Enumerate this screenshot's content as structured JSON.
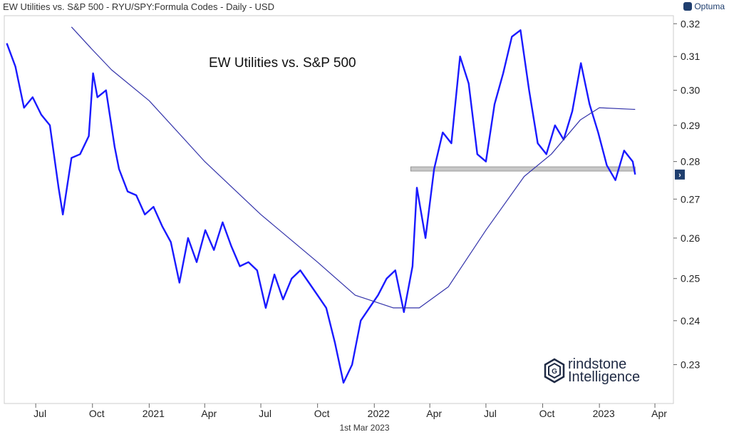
{
  "header": {
    "title": "EW Utilities vs. S&P 500 - RYU/SPY:Formula Codes - Daily - USD",
    "brand": "Optuma"
  },
  "footer": {
    "date": "1st Mar 2023"
  },
  "logo": {
    "line1": "rindstone",
    "line2": "Intelligence",
    "mark_letter": "G"
  },
  "colors": {
    "price_line": "#1a1aff",
    "moving_average": "#3333aa",
    "support_band": "#c8c8c8",
    "axis_marker": "#1f3e6e"
  },
  "chart_data": {
    "type": "line",
    "title": "EW Utilities vs. S&P 500",
    "xlabel": "",
    "ylabel": "",
    "ylim": [
      0.2215,
      0.3225
    ],
    "yscale": "log",
    "x_range": [
      "2020-05-11",
      "2023-05-01"
    ],
    "x_ticks": [
      {
        "label": "Jul",
        "date": "2020-07-01"
      },
      {
        "label": "Oct",
        "date": "2020-10-01"
      },
      {
        "label": "2021",
        "date": "2021-01-01"
      },
      {
        "label": "Apr",
        "date": "2021-04-01"
      },
      {
        "label": "Jul",
        "date": "2021-07-01"
      },
      {
        "label": "Oct",
        "date": "2021-10-01"
      },
      {
        "label": "2022",
        "date": "2022-01-01"
      },
      {
        "label": "Apr",
        "date": "2022-04-01"
      },
      {
        "label": "Jul",
        "date": "2022-07-01"
      },
      {
        "label": "Oct",
        "date": "2022-10-01"
      },
      {
        "label": "2023",
        "date": "2023-01-01"
      },
      {
        "label": "Apr",
        "date": "2023-04-01"
      }
    ],
    "y_ticks": [
      0.23,
      0.24,
      0.25,
      0.26,
      0.27,
      0.28,
      0.29,
      0.3,
      0.31,
      0.32
    ],
    "y_tick_labels": [
      "0.23",
      "0.24",
      "0.25",
      "0.26",
      "0.27",
      "0.28",
      "0.29",
      "0.30",
      "0.31",
      "0.32"
    ],
    "current_value_marker": 0.2765,
    "support_level": {
      "value": 0.278,
      "start": "2022-03-01",
      "end": "2023-02-28"
    },
    "series": [
      {
        "style": "price",
        "x": [
          "2020-05-15",
          "2020-05-29",
          "2020-06-12",
          "2020-06-26",
          "2020-07-10",
          "2020-07-24",
          "2020-08-07",
          "2020-08-14",
          "2020-08-28",
          "2020-09-11",
          "2020-09-25",
          "2020-10-02",
          "2020-10-09",
          "2020-10-23",
          "2020-11-06",
          "2020-11-13",
          "2020-11-27",
          "2020-12-11",
          "2020-12-25",
          "2021-01-08",
          "2021-01-22",
          "2021-02-05",
          "2021-02-19",
          "2021-03-05",
          "2021-03-19",
          "2021-04-02",
          "2021-04-16",
          "2021-04-30",
          "2021-05-14",
          "2021-05-28",
          "2021-06-11",
          "2021-06-25",
          "2021-07-09",
          "2021-07-23",
          "2021-08-06",
          "2021-08-20",
          "2021-09-03",
          "2021-09-17",
          "2021-10-01",
          "2021-10-15",
          "2021-10-29",
          "2021-11-12",
          "2021-11-26",
          "2021-12-10",
          "2021-12-24",
          "2022-01-07",
          "2022-01-21",
          "2022-02-04",
          "2022-02-18",
          "2022-03-04",
          "2022-03-11",
          "2022-03-25",
          "2022-04-08",
          "2022-04-22",
          "2022-05-06",
          "2022-05-20",
          "2022-06-03",
          "2022-06-17",
          "2022-07-01",
          "2022-07-15",
          "2022-07-29",
          "2022-08-12",
          "2022-08-26",
          "2022-09-09",
          "2022-09-23",
          "2022-10-07",
          "2022-10-21",
          "2022-11-04",
          "2022-11-18",
          "2022-12-02",
          "2022-12-16",
          "2022-12-30",
          "2023-01-13",
          "2023-01-27",
          "2023-02-10",
          "2023-02-24",
          "2023-02-28"
        ],
        "y": [
          0.314,
          0.307,
          0.295,
          0.298,
          0.293,
          0.29,
          0.273,
          0.266,
          0.281,
          0.282,
          0.287,
          0.305,
          0.298,
          0.3,
          0.284,
          0.278,
          0.272,
          0.271,
          0.266,
          0.268,
          0.263,
          0.259,
          0.249,
          0.26,
          0.254,
          0.262,
          0.257,
          0.264,
          0.258,
          0.253,
          0.254,
          0.252,
          0.243,
          0.251,
          0.245,
          0.25,
          0.252,
          0.249,
          0.246,
          0.243,
          0.235,
          0.226,
          0.23,
          0.24,
          0.243,
          0.246,
          0.25,
          0.252,
          0.242,
          0.253,
          0.273,
          0.26,
          0.278,
          0.288,
          0.285,
          0.31,
          0.302,
          0.282,
          0.28,
          0.296,
          0.305,
          0.316,
          0.318,
          0.3,
          0.285,
          0.282,
          0.29,
          0.286,
          0.294,
          0.308,
          0.296,
          0.288,
          0.279,
          0.275,
          0.283,
          0.28,
          0.2765
        ]
      },
      {
        "style": "moving_average",
        "x": [
          "2020-08-28",
          "2020-10-01",
          "2020-11-01",
          "2021-01-01",
          "2021-04-01",
          "2021-07-01",
          "2021-10-01",
          "2021-12-01",
          "2022-02-01",
          "2022-03-15",
          "2022-05-01",
          "2022-07-01",
          "2022-09-01",
          "2022-10-15",
          "2022-12-01",
          "2023-01-01",
          "2023-02-28"
        ],
        "y": [
          0.319,
          0.312,
          0.306,
          0.297,
          0.28,
          0.266,
          0.254,
          0.246,
          0.243,
          0.243,
          0.248,
          0.262,
          0.276,
          0.282,
          0.2915,
          0.295,
          0.2945
        ]
      }
    ]
  }
}
